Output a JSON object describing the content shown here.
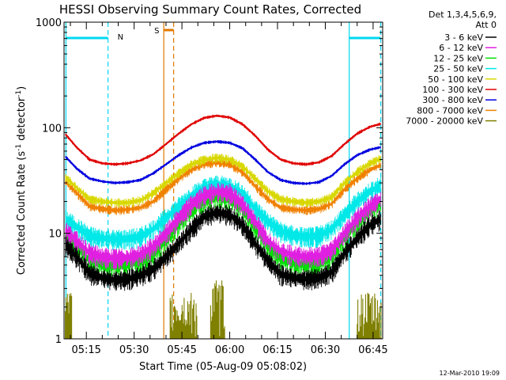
{
  "chart_data": {
    "type": "line",
    "title": "HESSI Observing Summary Count Rates, Corrected",
    "xlabel": "Start Time (05-Aug-09 05:08:02)",
    "ylabel_main": "Corrected Count Rate (s",
    "ylabel_exp1": "-1",
    "ylabel_mid": " detector",
    "ylabel_exp2": "-1",
    "ylabel_end": ")",
    "x_range_min": [
      308,
      408
    ],
    "y_scale": "log",
    "ylim": [
      1,
      1000
    ],
    "y_ticks": [
      {
        "value": 1,
        "label": "1"
      },
      {
        "value": 10,
        "label": "10"
      },
      {
        "value": 100,
        "label": "100"
      },
      {
        "value": 1000,
        "label": "1000"
      }
    ],
    "x_ticks": [
      {
        "min": 315,
        "label": "05:15"
      },
      {
        "min": 330,
        "label": "05:30"
      },
      {
        "min": 345,
        "label": "05:45"
      },
      {
        "min": 360,
        "label": "06:00"
      },
      {
        "min": 375,
        "label": "06:15"
      },
      {
        "min": 390,
        "label": "06:30"
      },
      {
        "min": 405,
        "label": "06:45"
      }
    ],
    "legend": {
      "placement": "right",
      "header1": "Det 1,3,4,5,6,9,",
      "header2": "Att 0",
      "entries": [
        {
          "label": "3 - 6 keV",
          "color": "#000000"
        },
        {
          "label": "6 - 12 keV",
          "color": "#e020e0"
        },
        {
          "label": "12 - 25 keV",
          "color": "#00e000"
        },
        {
          "label": "25 - 50 keV",
          "color": "#00e8e8"
        },
        {
          "label": "50 - 100 keV",
          "color": "#d8d800"
        },
        {
          "label": "100 - 300 keV",
          "color": "#e00000"
        },
        {
          "label": "300 - 800 keV",
          "color": "#0000e0"
        },
        {
          "label": "800 - 7000 keV",
          "color": "#f08000"
        },
        {
          "label": "7000 - 20000 keV",
          "color": "#808000"
        }
      ]
    },
    "x": [
      308,
      312,
      316,
      320,
      324,
      328,
      332,
      336,
      340,
      344,
      348,
      352,
      356,
      360,
      364,
      368,
      372,
      376,
      380,
      384,
      388,
      392,
      396,
      400,
      404,
      408
    ],
    "series": [
      {
        "name": "3 - 6 keV",
        "color": "#000000",
        "values": [
          8,
          6,
          4.2,
          3.8,
          3.6,
          3.7,
          4,
          4.6,
          6,
          8,
          11,
          14.5,
          15.8,
          15,
          12,
          8,
          5.5,
          4.1,
          3.8,
          3.7,
          3.8,
          4.3,
          6.5,
          9,
          12,
          14
        ]
      },
      {
        "name": "6 - 12 keV",
        "color": "#e020e0",
        "values": [
          11,
          8.5,
          6.5,
          6,
          5.8,
          5.9,
          6.3,
          7.5,
          10,
          14,
          19,
          23,
          25,
          24,
          19,
          13,
          8.5,
          6.8,
          6.2,
          6,
          6.1,
          7,
          10,
          14,
          18,
          22
        ]
      },
      {
        "name": "12 - 25 keV",
        "color": "#00e000",
        "values": [
          10,
          7.5,
          5.5,
          5,
          4.9,
          5,
          5.4,
          6.5,
          8.5,
          12,
          17,
          20,
          22,
          21,
          17,
          11,
          7.5,
          5.8,
          5.2,
          5,
          5.1,
          6,
          9,
          12.5,
          16,
          20
        ]
      },
      {
        "name": "25 - 50 keV",
        "color": "#00e8e8",
        "values": [
          14,
          11.5,
          9.5,
          9,
          8.8,
          8.9,
          9.3,
          11,
          14,
          18,
          23,
          27,
          29,
          28,
          24,
          17,
          13,
          10.5,
          9.6,
          9.3,
          9.5,
          11,
          15,
          20,
          25,
          29
        ]
      },
      {
        "name": "50 - 100 keV",
        "color": "#d8d800",
        "values": [
          35,
          27,
          21,
          20,
          19.5,
          19.5,
          20.5,
          24,
          30,
          37,
          45,
          50,
          52,
          50,
          43,
          33,
          25,
          21,
          20,
          19.5,
          20,
          22,
          30,
          38,
          46,
          52
        ]
      },
      {
        "name": "100 - 300 keV",
        "color": "#e00000",
        "values": [
          90,
          65,
          50,
          46,
          45,
          46,
          49,
          56,
          70,
          88,
          108,
          124,
          130,
          125,
          108,
          84,
          62,
          50,
          46,
          45,
          47,
          54,
          70,
          88,
          102,
          110
        ]
      },
      {
        "name": "300 - 800 keV",
        "color": "#0000e0",
        "values": [
          55,
          41,
          33,
          31,
          30,
          30.5,
          32,
          37,
          45,
          55,
          65,
          72,
          74,
          72,
          64,
          50,
          38,
          32,
          30,
          29.5,
          30.5,
          35,
          45,
          55,
          62,
          66
        ]
      },
      {
        "name": "800 - 7000 keV",
        "color": "#f08000",
        "values": [
          32,
          24,
          18,
          17,
          16.5,
          16.8,
          17.5,
          20,
          26,
          33,
          40,
          45,
          47,
          45,
          38,
          28,
          21,
          17.5,
          16.8,
          16.5,
          17,
          19,
          26,
          33,
          40,
          45
        ]
      }
    ],
    "overlays": {
      "segment_markers": [
        {
          "label": "N",
          "color": "#00d8f0"
        },
        {
          "label": "S",
          "color": "#e07800"
        }
      ]
    },
    "timestamp": "12-Mar-2010 19:09"
  }
}
